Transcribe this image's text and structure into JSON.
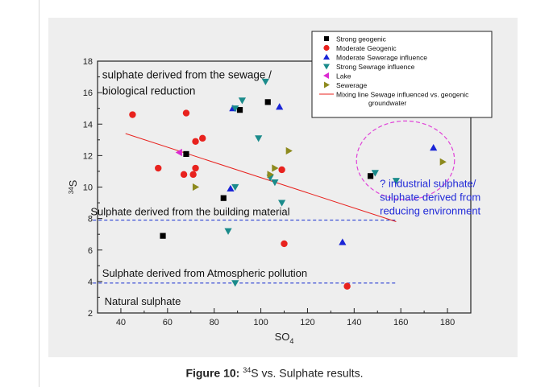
{
  "chart_data": {
    "type": "scatter",
    "xlabel": "SO",
    "xlabel_sub": "4",
    "ylabel_sup": "34",
    "ylabel": "S",
    "xlim": [
      30,
      190
    ],
    "ylim": [
      2,
      18
    ],
    "xticks": [
      "40",
      "60",
      "80",
      "100",
      "120",
      "140",
      "160",
      "180"
    ],
    "yticks": [
      "2",
      "4",
      "6",
      "8",
      "10",
      "12",
      "14",
      "16",
      "18"
    ],
    "legend_position": "top-right",
    "series": [
      {
        "name": "Strong geogenic",
        "marker": "square",
        "color": "#000000",
        "points": [
          [
            58,
            6.9
          ],
          [
            68,
            12.1
          ],
          [
            84,
            9.3
          ],
          [
            91,
            14.9
          ],
          [
            103,
            15.4
          ],
          [
            147,
            10.7
          ]
        ]
      },
      {
        "name": "Moderate Geogenic",
        "marker": "circle",
        "color": "#e8221e",
        "points": [
          [
            45,
            14.6
          ],
          [
            56,
            11.2
          ],
          [
            67,
            10.8
          ],
          [
            68,
            14.7
          ],
          [
            71,
            10.8
          ],
          [
            72,
            12.9
          ],
          [
            72,
            11.2
          ],
          [
            75,
            13.1
          ],
          [
            109,
            11.1
          ],
          [
            110,
            6.4
          ],
          [
            137,
            3.7
          ]
        ]
      },
      {
        "name": "Moderate Sewerage influence",
        "marker": "triangle-up",
        "color": "#1a25d6",
        "points": [
          [
            88,
            15.0
          ],
          [
            87,
            9.9
          ],
          [
            108,
            15.1
          ],
          [
            135,
            6.5
          ],
          [
            174,
            12.5
          ]
        ]
      },
      {
        "name": "Strong Sewrage influence",
        "marker": "triangle-down",
        "color": "#1a8b8b",
        "points": [
          [
            89,
            15.0
          ],
          [
            92,
            15.5
          ],
          [
            99,
            13.1
          ],
          [
            102,
            16.7
          ],
          [
            104,
            10.6
          ],
          [
            106,
            10.3
          ],
          [
            109,
            9.0
          ],
          [
            89,
            10.0
          ],
          [
            86,
            7.2
          ],
          [
            89,
            3.9
          ],
          [
            149,
            10.9
          ],
          [
            158,
            10.4
          ]
        ]
      },
      {
        "name": "Lake",
        "marker": "triangle-left",
        "color": "#dc2bd1",
        "points": [
          [
            65,
            12.2
          ]
        ]
      },
      {
        "name": "Sewerage",
        "marker": "triangle-right",
        "color": "#8d8a1e",
        "points": [
          [
            72,
            10.0
          ],
          [
            106,
            11.2
          ],
          [
            112,
            12.3
          ],
          [
            104,
            10.8
          ],
          [
            178,
            11.6
          ]
        ]
      }
    ],
    "mixing_line": {
      "name": "Mixing line Sewage influenced vs. geogenic",
      "name2": "groundwater",
      "color": "#e8221e",
      "from": [
        42,
        13.4
      ],
      "to": [
        158,
        7.8
      ]
    },
    "reference_lines": [
      {
        "y": 7.9,
        "x_from": 28,
        "x_to": 158,
        "color": "#2a3fd4"
      },
      {
        "y": 3.9,
        "x_from": 28,
        "x_to": 158,
        "color": "#2a3fd4"
      }
    ],
    "annotations": [
      {
        "line1": "sulphate derived from the sewage /",
        "line2": "biological reduction",
        "color": "#111111"
      },
      {
        "line1": "Sulphate derived from the building material",
        "color": "#111111"
      },
      {
        "line1": "Sulphate derived from Atmospheric pollution",
        "color": "#111111"
      },
      {
        "line1": "Natural sulphate",
        "color": "#111111"
      },
      {
        "line1": "? industrial sulphate/",
        "line2": "sulphate derived from",
        "line3": "reducing environment",
        "color": "#2029d8"
      }
    ],
    "highlight_ellipse": {
      "cx": 162,
      "cy": 11.7,
      "rx": 21,
      "ry": 2.5,
      "color": "#e042d8"
    }
  },
  "caption": {
    "label": "Figure 10:",
    "sup": "34",
    "text": "S vs. Sulphate results."
  }
}
